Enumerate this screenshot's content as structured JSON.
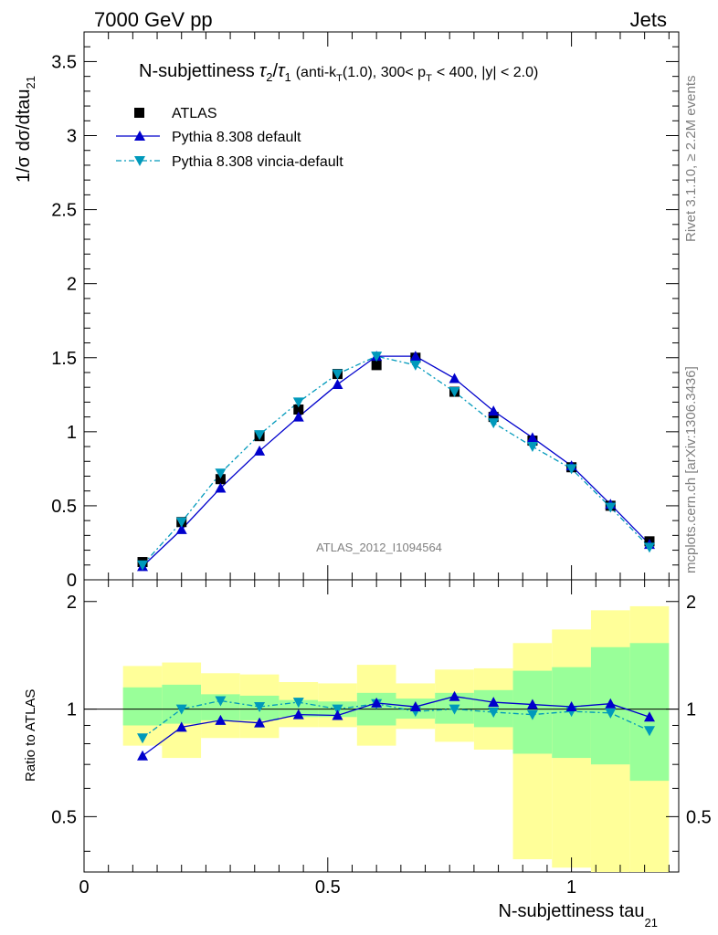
{
  "header": {
    "left": "7000 GeV pp",
    "right": "Jets"
  },
  "title": {
    "prefix": "N-subjettiness",
    "tau2": "τ",
    "tau2_sub": "2",
    "slash": "/",
    "tau1": "τ",
    "tau1_sub": "1",
    "cut_a": "(anti-k",
    "cut_a_sub": "T",
    "cut_b": "(1.0), 300< p",
    "cut_b_sub": "T",
    "cut_c": "< 400, |y| < 2.0)"
  },
  "side_labels": {
    "rivet": "Rivet 3.1.10, ≥ 2.2M events",
    "mcplots": "mcplots.cern.ch [arXiv:1306.3436]"
  },
  "watermark": "ATLAS_2012_I1094564",
  "axes": {
    "main_ylabel": "1/σ dσ/dtau",
    "main_ylabel_sub": "21",
    "ratio_ylabel": "Ratio to ATLAS",
    "xlabel": "N-subjettiness tau",
    "xlabel_sub": "21"
  },
  "chart_data": {
    "type": "scatter",
    "x": [
      0.12,
      0.2,
      0.28,
      0.36,
      0.44,
      0.52,
      0.6,
      0.68,
      0.76,
      0.84,
      0.92,
      1.0,
      1.08,
      1.16
    ],
    "bin_edges": [
      0.08,
      0.16,
      0.24,
      0.32,
      0.4,
      0.48,
      0.56,
      0.64,
      0.72,
      0.8,
      0.88,
      0.96,
      1.04,
      1.12,
      1.2
    ],
    "xlim": [
      0,
      1.22
    ],
    "main_ylim": [
      0,
      3.7
    ],
    "ratio_ylim": [
      0.35,
      2.3
    ],
    "main_yticks": [
      "0",
      "0.5",
      "1",
      "1.5",
      "2",
      "2.5",
      "3",
      "3.5"
    ],
    "main_ytick_values": [
      0,
      0.5,
      1,
      1.5,
      2,
      2.5,
      3,
      3.5
    ],
    "ratio_yticks": [
      "0.5",
      "1",
      "2"
    ],
    "ratio_ytick_values": [
      0.5,
      1,
      2
    ],
    "xticks": [
      "0",
      "0.5",
      "1"
    ],
    "xtick_values": [
      0,
      0.5,
      1
    ],
    "series": [
      {
        "name": "ATLAS",
        "marker": "square",
        "color": "#000000",
        "values": [
          0.12,
          0.39,
          0.68,
          0.97,
          1.15,
          1.39,
          1.45,
          1.5,
          1.27,
          1.1,
          0.94,
          0.76,
          0.5,
          0.26
        ]
      },
      {
        "name": "Pythia 8.308 default",
        "marker": "triangle-up",
        "color": "#0000cc",
        "line": "solid",
        "values": [
          0.09,
          0.34,
          0.62,
          0.87,
          1.1,
          1.32,
          1.51,
          1.51,
          1.36,
          1.14,
          0.96,
          0.77,
          0.51,
          0.24
        ]
      },
      {
        "name": "Pythia 8.308 vincia-default",
        "marker": "triangle-down",
        "color": "#0099bb",
        "line": "dashdot",
        "values": [
          0.1,
          0.39,
          0.72,
          0.98,
          1.2,
          1.39,
          1.51,
          1.45,
          1.27,
          1.06,
          0.9,
          0.75,
          0.49,
          0.22
        ]
      }
    ],
    "ratio_series": [
      {
        "name": "Pythia 8.308 default",
        "values": [
          0.74,
          0.89,
          0.93,
          0.915,
          0.965,
          0.96,
          1.04,
          1.015,
          1.085,
          1.045,
          1.03,
          1.015,
          1.035,
          0.95
        ]
      },
      {
        "name": "Pythia 8.308 vincia-default",
        "values": [
          0.83,
          1.0,
          1.055,
          1.015,
          1.045,
          1.0,
          1.035,
          0.985,
          1.0,
          0.98,
          0.965,
          0.985,
          0.975,
          0.87
        ]
      }
    ],
    "uncertainty_bands": {
      "stat_color": "#99ff99",
      "total_color": "#ffff99",
      "stat_low": [
        0.9,
        0.91,
        0.93,
        0.93,
        0.95,
        0.95,
        0.9,
        0.94,
        0.91,
        0.89,
        0.75,
        0.73,
        0.7,
        0.63
      ],
      "stat_high": [
        1.15,
        1.17,
        1.1,
        1.09,
        1.06,
        1.05,
        1.11,
        1.07,
        1.11,
        1.13,
        1.28,
        1.31,
        1.49,
        1.53
      ],
      "tot_low": [
        0.79,
        0.73,
        0.83,
        0.83,
        0.89,
        0.89,
        0.79,
        0.88,
        0.81,
        0.77,
        0.38,
        0.36,
        0.35,
        0.33
      ],
      "tot_high": [
        1.32,
        1.35,
        1.26,
        1.25,
        1.19,
        1.18,
        1.33,
        1.18,
        1.29,
        1.3,
        1.53,
        1.67,
        1.89,
        1.94
      ]
    },
    "legend_placement": "top-left",
    "grid": false
  }
}
